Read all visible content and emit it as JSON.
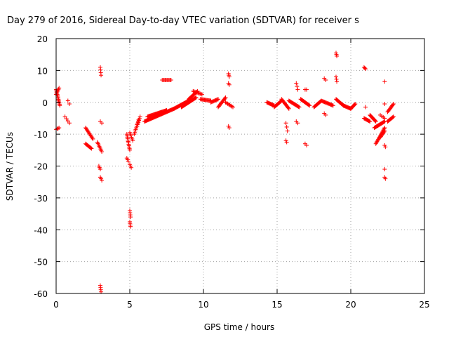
{
  "chart_data": {
    "type": "scatter",
    "title": "Day 279 of 2016, Sidereal Day-to-day VTEC variation (SDTVAR) for receiver s",
    "xlabel": "GPS time / hours",
    "ylabel": "SDTVAR / TECUs",
    "xlim": [
      0,
      25
    ],
    "ylim": [
      -60,
      20
    ],
    "xticks": [
      0,
      5,
      10,
      15,
      20,
      25
    ],
    "yticks": [
      -60,
      -50,
      -40,
      -30,
      -20,
      -10,
      0,
      10,
      20
    ],
    "xtick_labels": [
      "0",
      "5",
      "10",
      "15",
      "20",
      "25"
    ],
    "ytick_labels": [
      "-60",
      "-50",
      "-40",
      "-30",
      "-20",
      "-10",
      "0",
      "10",
      "20"
    ],
    "grid": true,
    "marker": "+",
    "color": "#ff0000",
    "series": [
      {
        "name": "SDTVAR",
        "segments": [
          {
            "x0": 0.0,
            "y0": 4.0,
            "x1": 0.25,
            "y1": -1.0,
            "n": 14
          },
          {
            "x0": 0.0,
            "y0": 2.5,
            "x1": 0.2,
            "y1": 4.5,
            "n": 6
          },
          {
            "x0": 0.0,
            "y0": -8.5,
            "x1": 0.2,
            "y1": -8.0,
            "n": 4
          },
          {
            "x0": 0.6,
            "y0": -4.5,
            "x1": 0.9,
            "y1": -6.5,
            "n": 4
          },
          {
            "x0": 0.8,
            "y0": 0.5,
            "x1": 0.9,
            "y1": -0.5,
            "n": 2
          },
          {
            "x0": 2.0,
            "y0": -8.0,
            "x1": 2.5,
            "y1": -11.5,
            "n": 12
          },
          {
            "x0": 2.0,
            "y0": -13.0,
            "x1": 2.4,
            "y1": -14.5,
            "n": 10
          },
          {
            "x0": 2.8,
            "y0": -12.5,
            "x1": 3.1,
            "y1": -15.5,
            "n": 8
          },
          {
            "x0": 2.9,
            "y0": -20.0,
            "x1": 3.0,
            "y1": -21.0,
            "n": 3
          },
          {
            "x0": 3.0,
            "y0": -23.5,
            "x1": 3.1,
            "y1": -24.5,
            "n": 3
          },
          {
            "x0": 3.0,
            "y0": 11.0,
            "x1": 3.05,
            "y1": 8.5,
            "n": 4
          },
          {
            "x0": 3.0,
            "y0": -6.0,
            "x1": 3.1,
            "y1": -6.5,
            "n": 2
          },
          {
            "x0": 3.0,
            "y0": -57.5,
            "x1": 3.05,
            "y1": -59.5,
            "n": 4
          },
          {
            "x0": 4.8,
            "y0": -10.0,
            "x1": 5.0,
            "y1": -15.0,
            "n": 12
          },
          {
            "x0": 4.8,
            "y0": -17.5,
            "x1": 4.9,
            "y1": -18.5,
            "n": 3
          },
          {
            "x0": 5.0,
            "y0": -9.5,
            "x1": 5.2,
            "y1": -12.0,
            "n": 6
          },
          {
            "x0": 5.0,
            "y0": -19.5,
            "x1": 5.1,
            "y1": -20.5,
            "n": 3
          },
          {
            "x0": 5.0,
            "y0": -34.0,
            "x1": 5.05,
            "y1": -36.0,
            "n": 4
          },
          {
            "x0": 5.0,
            "y0": -37.5,
            "x1": 5.05,
            "y1": -39.0,
            "n": 4
          },
          {
            "x0": 5.3,
            "y0": -10.0,
            "x1": 5.6,
            "y1": -5.5,
            "n": 10
          },
          {
            "x0": 5.5,
            "y0": -7.5,
            "x1": 5.7,
            "y1": -4.5,
            "n": 6
          },
          {
            "x0": 6.0,
            "y0": -6.0,
            "x1": 8.0,
            "y1": -2.0,
            "n": 50
          },
          {
            "x0": 6.2,
            "y0": -4.5,
            "x1": 7.5,
            "y1": -2.5,
            "n": 30
          },
          {
            "x0": 7.2,
            "y0": 7.0,
            "x1": 7.8,
            "y1": 7.0,
            "n": 10
          },
          {
            "x0": 8.0,
            "y0": -2.0,
            "x1": 9.0,
            "y1": 0.5,
            "n": 24
          },
          {
            "x0": 8.5,
            "y0": -1.5,
            "x1": 9.5,
            "y1": 1.5,
            "n": 26
          },
          {
            "x0": 9.0,
            "y0": 1.0,
            "x1": 9.6,
            "y1": 3.5,
            "n": 14
          },
          {
            "x0": 9.3,
            "y0": 3.5,
            "x1": 9.9,
            "y1": 2.5,
            "n": 10
          },
          {
            "x0": 9.8,
            "y0": 1.0,
            "x1": 10.5,
            "y1": 0.5,
            "n": 14
          },
          {
            "x0": 10.5,
            "y0": 0.0,
            "x1": 11.0,
            "y1": 1.0,
            "n": 10
          },
          {
            "x0": 11.0,
            "y0": -1.5,
            "x1": 11.5,
            "y1": 1.5,
            "n": 12
          },
          {
            "x0": 11.5,
            "y0": 0.0,
            "x1": 12.0,
            "y1": -1.5,
            "n": 8
          },
          {
            "x0": 11.7,
            "y0": 9.0,
            "x1": 11.75,
            "y1": 8.0,
            "n": 3
          },
          {
            "x0": 11.7,
            "y0": 6.0,
            "x1": 11.75,
            "y1": 5.5,
            "n": 2
          },
          {
            "x0": 11.7,
            "y0": -7.5,
            "x1": 11.75,
            "y1": -8.0,
            "n": 2
          },
          {
            "x0": 14.3,
            "y0": 0.0,
            "x1": 14.8,
            "y1": -1.0,
            "n": 12
          },
          {
            "x0": 14.8,
            "y0": -1.5,
            "x1": 15.3,
            "y1": 0.5,
            "n": 12
          },
          {
            "x0": 15.3,
            "y0": 1.0,
            "x1": 15.8,
            "y1": -2.0,
            "n": 12
          },
          {
            "x0": 15.6,
            "y0": -6.5,
            "x1": 15.7,
            "y1": -9.0,
            "n": 3
          },
          {
            "x0": 15.6,
            "y0": -12.0,
            "x1": 15.65,
            "y1": -12.5,
            "n": 2
          },
          {
            "x0": 15.8,
            "y0": 0.5,
            "x1": 16.5,
            "y1": -1.5,
            "n": 16
          },
          {
            "x0": 16.3,
            "y0": 6.0,
            "x1": 16.4,
            "y1": 4.0,
            "n": 3
          },
          {
            "x0": 16.3,
            "y0": -6.0,
            "x1": 16.4,
            "y1": -6.5,
            "n": 2
          },
          {
            "x0": 16.6,
            "y0": 1.0,
            "x1": 17.2,
            "y1": -1.0,
            "n": 14
          },
          {
            "x0": 16.9,
            "y0": 4.0,
            "x1": 17.0,
            "y1": 4.0,
            "n": 2
          },
          {
            "x0": 16.9,
            "y0": -13.0,
            "x1": 17.0,
            "y1": -13.5,
            "n": 2
          },
          {
            "x0": 17.5,
            "y0": -1.5,
            "x1": 18.0,
            "y1": 0.5,
            "n": 12
          },
          {
            "x0": 18.0,
            "y0": 0.5,
            "x1": 18.8,
            "y1": -1.0,
            "n": 16
          },
          {
            "x0": 18.2,
            "y0": 7.5,
            "x1": 18.3,
            "y1": 7.0,
            "n": 2
          },
          {
            "x0": 18.2,
            "y0": -3.5,
            "x1": 18.3,
            "y1": -4.0,
            "n": 2
          },
          {
            "x0": 19.0,
            "y0": 15.5,
            "x1": 19.05,
            "y1": 14.5,
            "n": 3
          },
          {
            "x0": 19.0,
            "y0": 8.0,
            "x1": 19.05,
            "y1": 6.5,
            "n": 3
          },
          {
            "x0": 19.0,
            "y0": 1.0,
            "x1": 19.5,
            "y1": -1.0,
            "n": 12
          },
          {
            "x0": 19.5,
            "y0": -1.0,
            "x1": 20.0,
            "y1": -2.0,
            "n": 12
          },
          {
            "x0": 20.0,
            "y0": -2.0,
            "x1": 20.3,
            "y1": -0.5,
            "n": 8
          },
          {
            "x0": 20.9,
            "y0": 11.0,
            "x1": 21.0,
            "y1": 10.5,
            "n": 3
          },
          {
            "x0": 20.9,
            "y0": -5.0,
            "x1": 21.3,
            "y1": -6.0,
            "n": 10
          },
          {
            "x0": 21.0,
            "y0": -1.5,
            "x1": 21.05,
            "y1": -1.5,
            "n": 1
          },
          {
            "x0": 21.3,
            "y0": -4.0,
            "x1": 21.7,
            "y1": -6.0,
            "n": 12
          },
          {
            "x0": 21.6,
            "y0": -8.0,
            "x1": 22.3,
            "y1": -6.0,
            "n": 16
          },
          {
            "x0": 21.7,
            "y0": -13.0,
            "x1": 22.3,
            "y1": -8.0,
            "n": 16
          },
          {
            "x0": 22.0,
            "y0": -11.0,
            "x1": 22.3,
            "y1": -9.0,
            "n": 8
          },
          {
            "x0": 22.0,
            "y0": -4.0,
            "x1": 22.3,
            "y1": -5.0,
            "n": 4
          },
          {
            "x0": 22.3,
            "y0": 6.5,
            "x1": 22.35,
            "y1": 6.5,
            "n": 1
          },
          {
            "x0": 22.3,
            "y0": -0.5,
            "x1": 22.35,
            "y1": -0.5,
            "n": 1
          },
          {
            "x0": 22.3,
            "y0": -13.5,
            "x1": 22.35,
            "y1": -14.0,
            "n": 2
          },
          {
            "x0": 22.3,
            "y0": -21.0,
            "x1": 22.35,
            "y1": -21.0,
            "n": 1
          },
          {
            "x0": 22.3,
            "y0": -23.5,
            "x1": 22.35,
            "y1": -24.0,
            "n": 2
          },
          {
            "x0": 22.5,
            "y0": -3.0,
            "x1": 22.9,
            "y1": -0.5,
            "n": 10
          },
          {
            "x0": 22.5,
            "y0": -6.0,
            "x1": 22.9,
            "y1": -4.5,
            "n": 10
          }
        ]
      }
    ]
  }
}
